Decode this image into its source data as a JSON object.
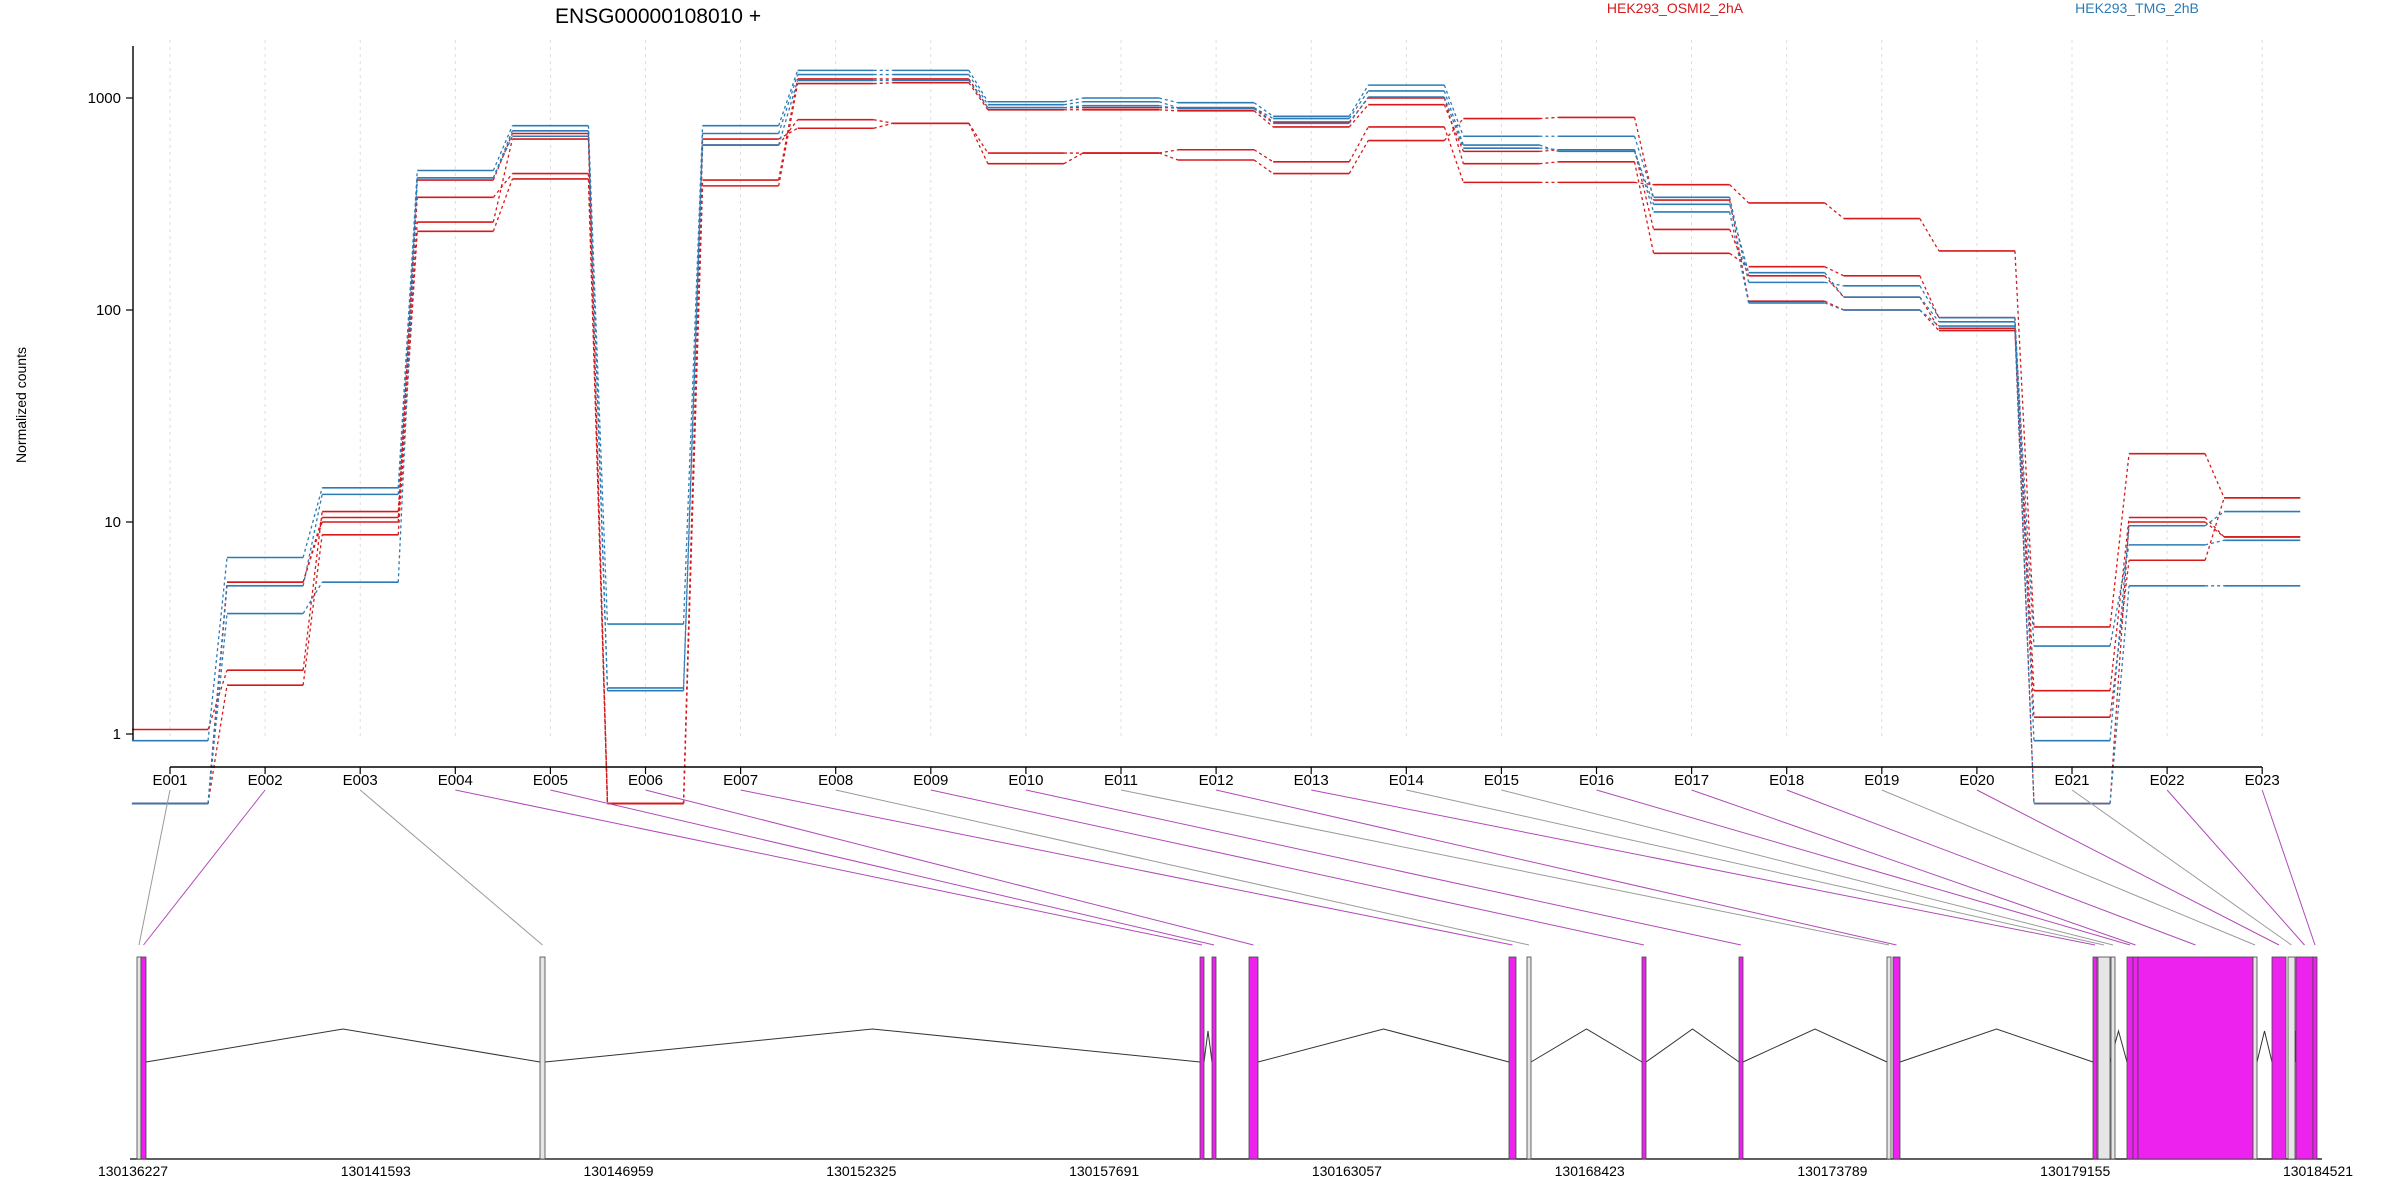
{
  "chart_data": {
    "type": "line",
    "title": "ENSG00000108010 +",
    "ylabel": "Normalized counts",
    "y_scale": "log",
    "ylim": [
      0.45,
      1900
    ],
    "y_ticks": [
      {
        "value": 1,
        "label": "1"
      },
      {
        "value": 10,
        "label": "10"
      },
      {
        "value": 100,
        "label": "100"
      },
      {
        "value": 1000,
        "label": "1000"
      }
    ],
    "grid": "vertical dashed lines at exon centres",
    "colors": {
      "HEK293_OSMI2_2hA": "#d7191c",
      "HEK293_TMG_2hB": "#2c7bb6"
    },
    "legend": [
      {
        "label": "HEK293_OSMI2_2hA",
        "color": "#d7191c"
      },
      {
        "label": "HEK293_TMG_2hB",
        "color": "#2c7bb6"
      }
    ],
    "categories": [
      "E001",
      "E002",
      "E003",
      "E004",
      "E005",
      "E006",
      "E007",
      "E008",
      "E009",
      "E010",
      "E011",
      "E012",
      "E013",
      "E014",
      "E015",
      "E016",
      "E017",
      "E018",
      "E019",
      "E020",
      "E021",
      "E022",
      "E023"
    ],
    "series": [
      {
        "group": "HEK293_OSMI2_2hA",
        "color": "#d7191c",
        "values": [
          0.47,
          1.7,
          8.7,
          235,
          415,
          0.47,
          385,
          1170,
          1180,
          880,
          880,
          870,
          730,
          930,
          560,
          570,
          240,
          145,
          115,
          82,
          1.2,
          6.6,
          13
        ]
      },
      {
        "group": "HEK293_OSMI2_2hA",
        "color": "#d7191c",
        "values": [
          1.05,
          2.0,
          11.2,
          340,
          440,
          0.47,
          410,
          1230,
          1230,
          900,
          900,
          900,
          770,
          1000,
          490,
          500,
          185,
          160,
          145,
          92,
          1.6,
          10.5,
          8.5
        ]
      },
      {
        "group": "HEK293_OSMI2_2hA",
        "color": "#d7191c",
        "values": [
          0.47,
          5.2,
          10.5,
          260,
          640,
          0.47,
          600,
          790,
          760,
          550,
          550,
          570,
          500,
          730,
          400,
          400,
          390,
          320,
          270,
          190,
          3.2,
          21,
          13
        ]
      },
      {
        "group": "HEK293_OSMI2_2hA",
        "color": "#d7191c",
        "values": [
          0.47,
          5.2,
          10.0,
          410,
          680,
          0.47,
          640,
          720,
          760,
          490,
          550,
          510,
          440,
          630,
          800,
          810,
          330,
          110,
          100,
          80,
          0.47,
          10.0,
          8.5
        ]
      },
      {
        "group": "HEK293_TMG_2hB",
        "color": "#2c7bb6",
        "values": [
          0.93,
          6.8,
          14.5,
          455,
          740,
          3.3,
          740,
          1350,
          1350,
          960,
          1000,
          950,
          820,
          1150,
          660,
          660,
          340,
          135,
          130,
          92,
          0.93,
          9.6,
          11.2
        ]
      },
      {
        "group": "HEK293_TMG_2hB",
        "color": "#2c7bb6",
        "values": [
          0.47,
          5.0,
          13.5,
          420,
          700,
          1.65,
          680,
          1290,
          1290,
          930,
          960,
          900,
          800,
          1080,
          600,
          560,
          315,
          150,
          115,
          88,
          2.6,
          7.8,
          8.2
        ]
      },
      {
        "group": "HEK293_TMG_2hB",
        "color": "#2c7bb6",
        "values": [
          0.47,
          3.7,
          5.2,
          420,
          660,
          1.6,
          600,
          1210,
          1210,
          900,
          920,
          890,
          760,
          1010,
          580,
          570,
          290,
          108,
          100,
          84,
          0.47,
          5.0,
          5.0
        ]
      }
    ],
    "gene_model": {
      "coordinate_ticks": [
        "130136227",
        "130141593",
        "130146959",
        "130152325",
        "130157691",
        "130163057",
        "130168423",
        "130173789",
        "130179155",
        "130184521"
      ],
      "exon_colors": {
        "differential": "#ee22ee",
        "unchanged": "#e6e6e6"
      }
    }
  }
}
